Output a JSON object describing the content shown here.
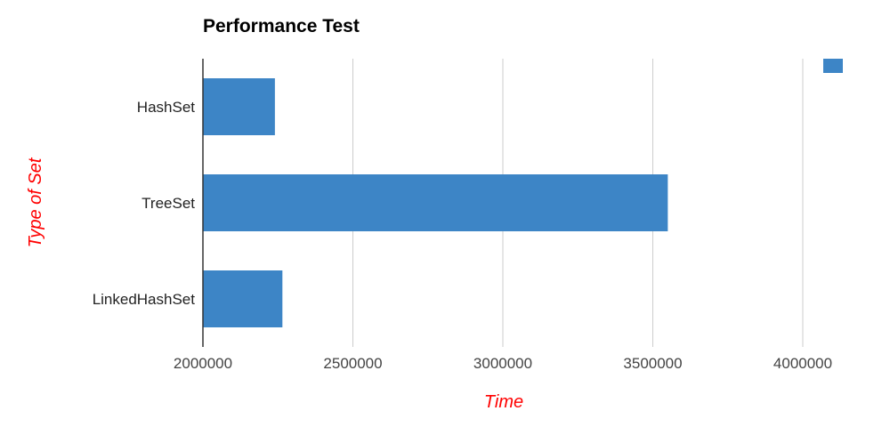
{
  "chart_data": {
    "type": "bar",
    "orientation": "horizontal",
    "title": "Performance Test",
    "xlabel": "Time",
    "ylabel": "Type of Set",
    "categories": [
      "HashSet",
      "TreeSet",
      "LinkedHashSet"
    ],
    "series": [
      {
        "name": "",
        "values": [
          2240000,
          3550000,
          2265000
        ]
      }
    ],
    "xlim": [
      2000000,
      4000000
    ],
    "xticks": [
      "2000000",
      "2500000",
      "3000000",
      "3500000",
      "4000000"
    ],
    "grid": true,
    "legend": "top-right",
    "colors": {
      "bar": "#3d85c6",
      "axis_title": "#ff0000",
      "gridline": "#cccccc",
      "axis_line": "#333333"
    }
  }
}
